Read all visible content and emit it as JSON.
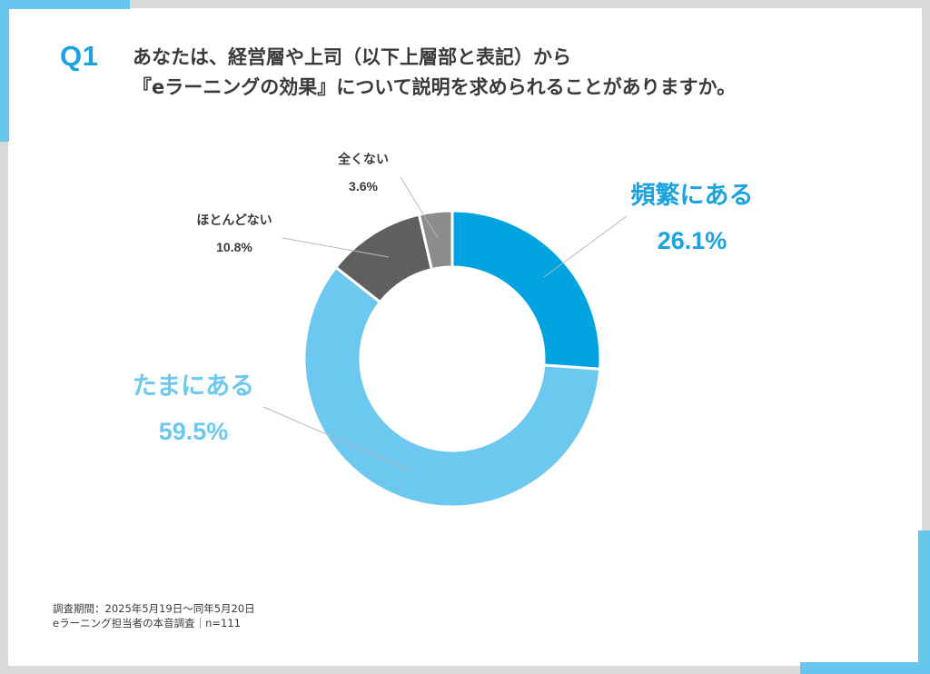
{
  "header": {
    "q_label": "Q1",
    "question_lines": [
      "あなたは、経営層や上司（以下上層部と表記）から",
      "『eラーニングの効果』について説明を求められることがありますか。"
    ]
  },
  "chart_data": {
    "type": "pie",
    "variant": "donut",
    "slices": [
      {
        "label": "頻繁にある",
        "value": 26.1,
        "value_label": "26.1%",
        "color": "#00a3e0",
        "label_color": "#1aa3df"
      },
      {
        "label": "たまにある",
        "value": 59.5,
        "value_label": "59.5%",
        "color": "#6cc8ef",
        "label_color": "#6cc8ef"
      },
      {
        "label": "ほとんどない",
        "value": 10.8,
        "value_label": "10.8%",
        "color": "#5f5f5f",
        "label_color": "#3a3a3a"
      },
      {
        "label": "全くない",
        "value": 3.6,
        "value_label": "3.6%",
        "color": "#8c8c8c",
        "label_color": "#3a3a3a"
      }
    ],
    "start": "12 o'clock",
    "direction": "clockwise",
    "legend": "none"
  },
  "footnote": {
    "period": "調査期間：2025年5月19日～同年5月20日",
    "source": "eラーニング担当者の本音調査｜n=111"
  },
  "colors": {
    "frame": "#d9d9d9",
    "accent": "#67c6ee",
    "title_text": "#3a3a3a",
    "q_label": "#1aa3df"
  }
}
